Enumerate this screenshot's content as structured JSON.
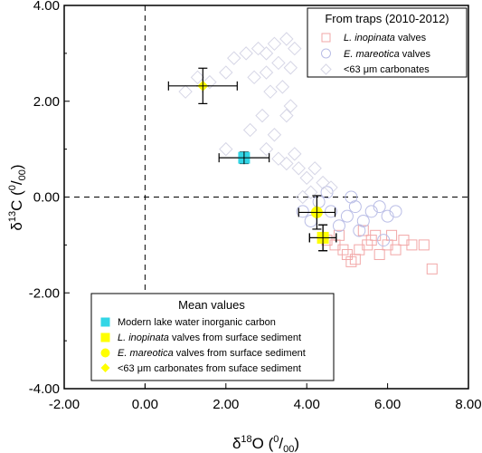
{
  "chart_data": {
    "type": "scatter",
    "xlabel": {
      "base": "δ",
      "sup1": "18",
      "mid": "O (",
      "sup2": "0",
      "slash": "/",
      "sub": "00",
      "end": ")"
    },
    "ylabel": {
      "base": "δ",
      "sup1": "13",
      "mid": "C (",
      "sup2": "0",
      "slash": "/",
      "sub": "00",
      "end": ")"
    },
    "xlim": [
      -2,
      8
    ],
    "ylim": [
      -4,
      4
    ],
    "xticks": [
      "-2.00",
      "0.00",
      "2.00",
      "4.00",
      "6.00",
      "8.00"
    ],
    "yticks": [
      "4.00",
      "2.00",
      "0.00",
      "-2.00",
      "-4.00"
    ],
    "reference_lines": {
      "x": 0,
      "y": 0
    },
    "legend_traps": {
      "title": "From traps (2010-2012)",
      "entries": [
        {
          "italic": "L. inopinata",
          "text": " valves"
        },
        {
          "italic": "E. mareotica",
          "text": " valves"
        },
        {
          "italic": "",
          "text": "<63 μm carbonates"
        }
      ]
    },
    "legend_means": {
      "title": "Mean values",
      "entries": [
        {
          "italic": "",
          "text": "Modern lake water inorganic carbon"
        },
        {
          "italic": "L. inopinata",
          "text": " valves from surface sediment"
        },
        {
          "italic": "E. mareotica",
          "text": " valves from surface sediment"
        },
        {
          "italic": "",
          "text": "<63 μm carbonates from suface sediment"
        }
      ]
    },
    "colors": {
      "traps_l_inopinata": "#f2a7a7",
      "traps_e_mareotica": "#b9bde6",
      "traps_carbonates": "#d6d6e6",
      "mean_water": "#33d6e6",
      "mean_sediment": "#ffff00"
    },
    "series": [
      {
        "name": "L. inopinata valves",
        "marker": "square-open",
        "points": [
          [
            4.5,
            -0.9
          ],
          [
            4.7,
            -1.0
          ],
          [
            4.9,
            -1.1
          ],
          [
            5.0,
            -1.2
          ],
          [
            5.2,
            -1.3
          ],
          [
            5.3,
            -1.1
          ],
          [
            5.5,
            -1.0
          ],
          [
            5.6,
            -0.9
          ],
          [
            5.8,
            -1.2
          ],
          [
            6.0,
            -1.0
          ],
          [
            6.2,
            -1.1
          ],
          [
            6.4,
            -0.9
          ],
          [
            6.6,
            -1.0
          ],
          [
            6.9,
            -1.0
          ],
          [
            7.1,
            -1.5
          ],
          [
            5.4,
            -0.7
          ],
          [
            5.7,
            -0.8
          ],
          [
            5.1,
            -1.35
          ],
          [
            4.8,
            -0.8
          ],
          [
            6.1,
            -0.8
          ]
        ]
      },
      {
        "name": "E. mareotica valves",
        "marker": "circle-open",
        "points": [
          [
            3.9,
            -0.3
          ],
          [
            4.1,
            -0.5
          ],
          [
            4.3,
            -0.1
          ],
          [
            4.5,
            0.1
          ],
          [
            4.6,
            -0.3
          ],
          [
            4.8,
            -0.6
          ],
          [
            5.0,
            -0.4
          ],
          [
            5.2,
            -0.2
          ],
          [
            5.4,
            -0.5
          ],
          [
            5.6,
            -0.3
          ],
          [
            5.8,
            -0.2
          ],
          [
            6.0,
            -0.4
          ],
          [
            6.2,
            -0.3
          ],
          [
            5.9,
            -0.9
          ],
          [
            5.1,
            0.0
          ],
          [
            5.3,
            -0.7
          ]
        ]
      },
      {
        "name": "<63 μm carbonates",
        "marker": "diamond-open",
        "points": [
          [
            1.0,
            2.2
          ],
          [
            1.3,
            2.5
          ],
          [
            1.6,
            2.4
          ],
          [
            2.0,
            2.6
          ],
          [
            2.2,
            2.9
          ],
          [
            2.5,
            3.0
          ],
          [
            2.8,
            3.1
          ],
          [
            3.0,
            3.0
          ],
          [
            3.2,
            3.2
          ],
          [
            3.5,
            3.3
          ],
          [
            3.7,
            3.1
          ],
          [
            3.3,
            2.8
          ],
          [
            3.0,
            2.6
          ],
          [
            3.6,
            2.7
          ],
          [
            2.7,
            2.5
          ],
          [
            3.1,
            2.2
          ],
          [
            3.4,
            2.3
          ],
          [
            3.5,
            1.7
          ],
          [
            2.6,
            1.4
          ],
          [
            2.0,
            1.0
          ],
          [
            3.0,
            1.0
          ],
          [
            3.3,
            0.8
          ],
          [
            3.5,
            0.7
          ],
          [
            3.8,
            0.6
          ],
          [
            4.0,
            0.4
          ],
          [
            4.2,
            0.6
          ],
          [
            4.4,
            0.3
          ],
          [
            4.6,
            0.2
          ],
          [
            3.9,
            0.0
          ],
          [
            4.1,
            0.1
          ],
          [
            3.7,
            0.9
          ],
          [
            2.9,
            1.7
          ],
          [
            3.2,
            1.3
          ],
          [
            3.6,
            1.9
          ]
        ]
      }
    ],
    "means": [
      {
        "name": "Modern lake water inorganic carbon",
        "marker": "square-filled",
        "x": 2.45,
        "y": 0.82,
        "xerr": 0.62,
        "yerr": 0.12
      },
      {
        "name": "<63 μm carbonates from suface sediment",
        "marker": "diamond-filled",
        "x": 1.43,
        "y": 2.32,
        "xerr": 0.85,
        "yerr": 0.37
      },
      {
        "name": "E. mareotica valves from surface sediment",
        "marker": "circle-filled",
        "x": 4.25,
        "y": -0.32,
        "xerr": 0.45,
        "yerr": 0.35
      },
      {
        "name": "L. inopinata valves from surface sediment",
        "marker": "square-filled",
        "x": 4.4,
        "y": -0.85,
        "xerr": 0.33,
        "yerr": 0.27
      },
      {
        "name": "<63 μm carbonates from suface sediment",
        "marker": "diamond-filled",
        "x": 4.4,
        "y": -0.85,
        "xerr": 0.33,
        "yerr": 0.27
      }
    ]
  }
}
